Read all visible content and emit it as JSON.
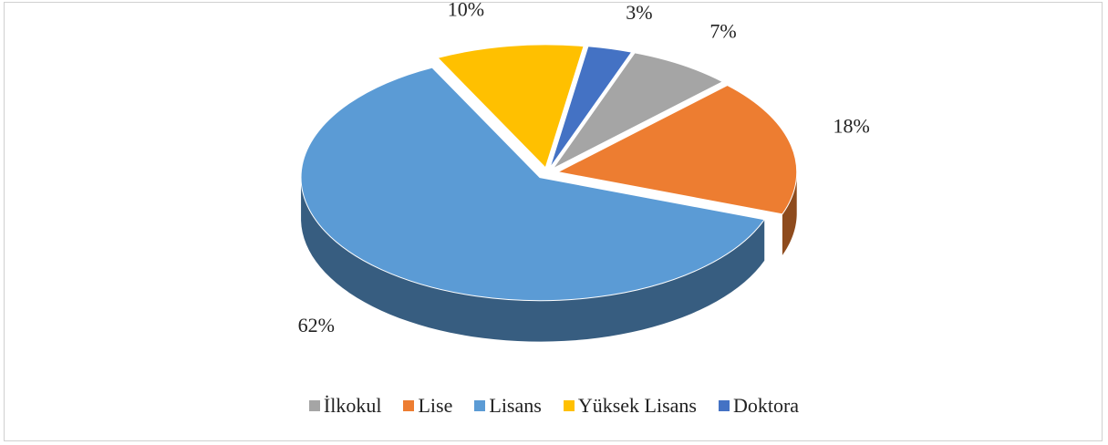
{
  "chart_data": {
    "type": "pie",
    "categories": [
      "İlkokul",
      "Lise",
      "Lisans",
      "Yüksek Lisans",
      "Doktora"
    ],
    "values": [
      7,
      18,
      62,
      10,
      3
    ],
    "value_labels": [
      "7%",
      "18%",
      "62%",
      "10%",
      "3%"
    ],
    "colors": [
      "#a5a5a5",
      "#ed7d31",
      "#5b9bd5",
      "#ffc000",
      "#4472c4"
    ],
    "legend": "bottom"
  }
}
